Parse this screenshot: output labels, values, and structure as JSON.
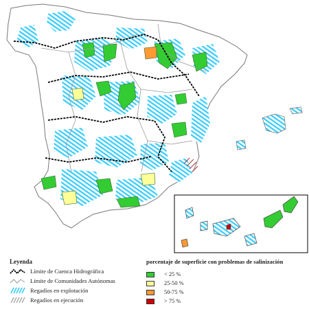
{
  "legend": {
    "title": "Leyenda",
    "items": [
      {
        "label": "Límite de Cuenca Hidrográfica",
        "symbol": "basin-boundary"
      },
      {
        "label": "Límite de Comunidades Autónomas",
        "symbol": "region-boundary"
      },
      {
        "label": "Regadíos en explotación",
        "symbol": "irrigation-operating"
      },
      {
        "label": "Regadíos en ejecución",
        "symbol": "irrigation-under-construction"
      }
    ]
  },
  "salinization": {
    "title": "porcentaje de superficie con problemas de salinización",
    "classes": [
      {
        "label": "< 25 %",
        "color": "#33cc33"
      },
      {
        "label": "25-50 %",
        "color": "#ffff99"
      },
      {
        "label": "50-75 %",
        "color": "#ff9933"
      },
      {
        "label": "> 75 %",
        "color": "#cc0000"
      }
    ]
  },
  "colors": {
    "irrigation": "#33ccff",
    "land": "#ffffff",
    "boundary": "#999999",
    "basin": "#000000"
  }
}
